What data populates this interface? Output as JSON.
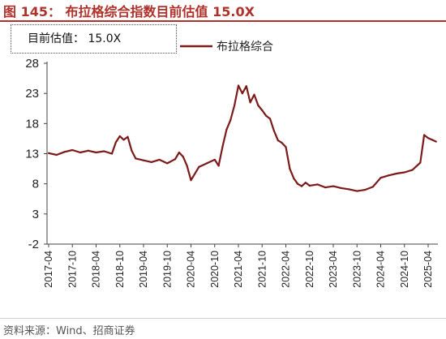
{
  "figure": {
    "title": "图 145：  布拉格综合指数目前估值 15.0X",
    "annotation": "目前估值：  15.0X",
    "source": "资料来源：Wind、招商证券"
  },
  "colors": {
    "series": "#7b1a18",
    "title": "#b0302a"
  },
  "chart_data": {
    "type": "line",
    "title": "图 145：  布拉格综合指数目前估值 15.0X",
    "xlabel": "",
    "ylabel": "",
    "ylim": [
      -2,
      28
    ],
    "yticks": [
      -2,
      3,
      8,
      13,
      18,
      23,
      28
    ],
    "xticks": [
      "2017-04",
      "2017-10",
      "2018-04",
      "2018-10",
      "2019-04",
      "2019-10",
      "2020-04",
      "2020-10",
      "2021-04",
      "2021-10",
      "2022-04",
      "2022-10",
      "2023-04",
      "2023-10",
      "2024-04",
      "2024-10",
      "2025-04"
    ],
    "legend": {
      "position": "top-center"
    },
    "grid": false,
    "series": [
      {
        "name": "布拉格综合",
        "x": [
          "2017-04",
          "2017-06",
          "2017-08",
          "2017-10",
          "2017-12",
          "2018-02",
          "2018-04",
          "2018-06",
          "2018-08",
          "2018-09",
          "2018-10",
          "2018-11",
          "2018-12",
          "2019-01",
          "2019-02",
          "2019-04",
          "2019-06",
          "2019-08",
          "2019-10",
          "2019-12",
          "2020-01",
          "2020-02",
          "2020-03",
          "2020-04",
          "2020-06",
          "2020-08",
          "2020-10",
          "2020-11",
          "2020-12",
          "2021-01",
          "2021-02",
          "2021-03",
          "2021-04",
          "2021-05",
          "2021-06",
          "2021-07",
          "2021-08",
          "2021-09",
          "2021-10",
          "2021-11",
          "2021-12",
          "2022-01",
          "2022-02",
          "2022-03",
          "2022-04",
          "2022-05",
          "2022-06",
          "2022-07",
          "2022-08",
          "2022-09",
          "2022-10",
          "2022-12",
          "2023-02",
          "2023-04",
          "2023-06",
          "2023-08",
          "2023-10",
          "2023-12",
          "2024-02",
          "2024-04",
          "2024-06",
          "2024-08",
          "2024-10",
          "2024-12",
          "2025-01",
          "2025-02",
          "2025-03",
          "2025-04",
          "2025-05",
          "2025-06"
        ],
        "values": [
          13.1,
          12.8,
          13.3,
          13.6,
          13.2,
          13.5,
          13.2,
          13.4,
          13.0,
          14.9,
          15.9,
          15.3,
          15.8,
          13.5,
          12.2,
          11.9,
          11.6,
          12.0,
          11.4,
          12.1,
          13.2,
          12.5,
          11.0,
          8.6,
          10.8,
          11.4,
          12.0,
          11.0,
          14.2,
          17.0,
          18.6,
          21.0,
          24.3,
          23.0,
          24.2,
          21.5,
          22.8,
          21.0,
          20.2,
          19.3,
          18.8,
          16.8,
          15.2,
          14.8,
          14.1,
          10.5,
          8.9,
          8.0,
          7.6,
          8.2,
          7.7,
          7.9,
          7.4,
          7.6,
          7.3,
          7.1,
          6.8,
          7.0,
          7.5,
          9.0,
          9.4,
          9.7,
          9.9,
          10.3,
          10.9,
          11.5,
          16.1,
          15.6,
          15.3,
          15.0
        ]
      }
    ]
  }
}
